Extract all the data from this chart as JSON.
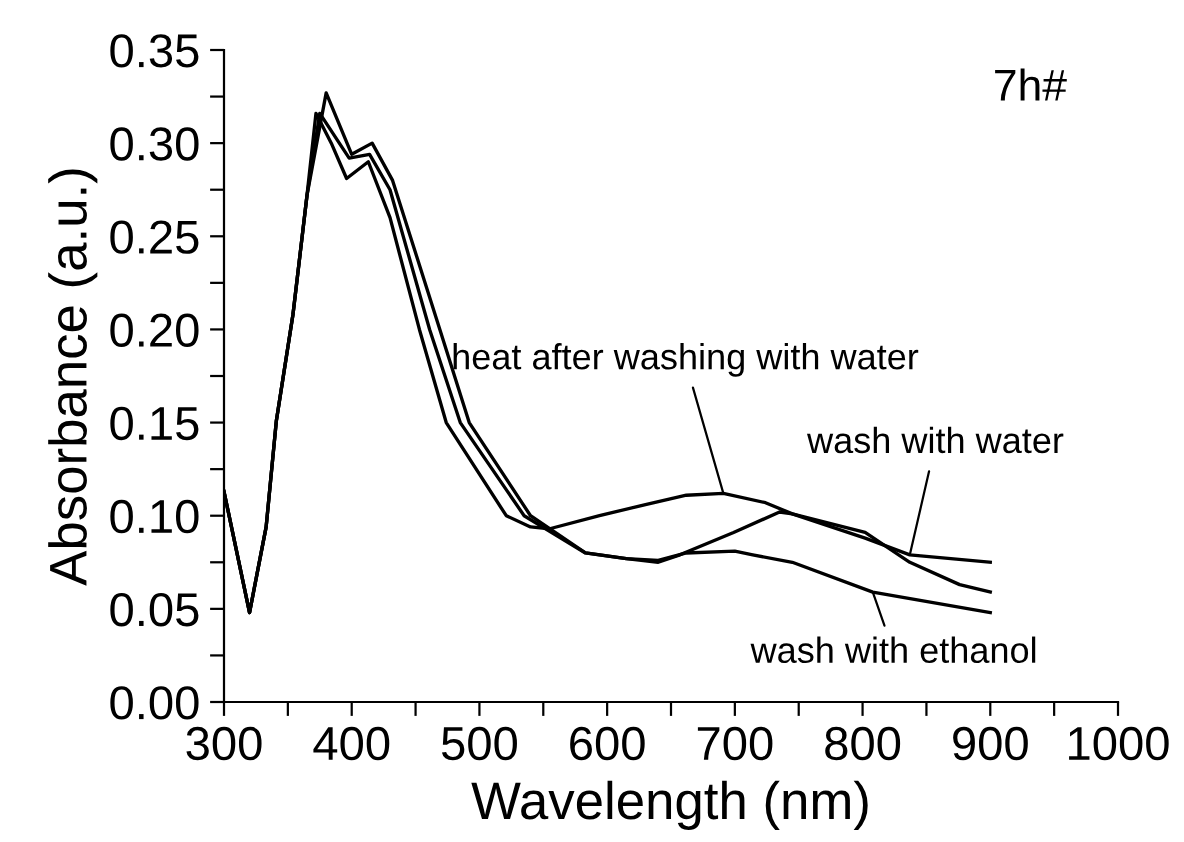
{
  "chart_data": {
    "type": "line",
    "xlabel": "Wavelength (nm)",
    "ylabel": "Absorbance (a.u.)",
    "xlim": [
      300,
      1000
    ],
    "ylim": [
      0,
      0.35
    ],
    "xticks": [
      300,
      {
        "value": 350,
        "label": null
      },
      400,
      {
        "value": 450,
        "label": null
      },
      500,
      {
        "value": 550,
        "label": null
      },
      600,
      {
        "value": 650,
        "label": null
      },
      700,
      {
        "value": 750,
        "label": null
      },
      800,
      {
        "value": 850,
        "label": null
      },
      900,
      {
        "value": 950,
        "label": null
      },
      1000
    ],
    "yticks": [
      {
        "value": 0,
        "label": "0.00"
      },
      {
        "value": 0.025,
        "label": null
      },
      {
        "value": 0.05,
        "label": "0.05"
      },
      {
        "value": 0.075,
        "label": null
      },
      {
        "value": 0.1,
        "label": "0.10"
      },
      {
        "value": 0.125,
        "label": null
      },
      {
        "value": 0.15,
        "label": "0.15"
      },
      {
        "value": 0.175,
        "label": null
      },
      {
        "value": 0.2,
        "label": "0.20"
      },
      {
        "value": 0.225,
        "label": null
      },
      {
        "value": 0.25,
        "label": "0.25"
      },
      {
        "value": 0.275,
        "label": null
      },
      {
        "value": 0.3,
        "label": "0.30"
      },
      {
        "value": 0.325,
        "label": null
      },
      {
        "value": 0.35,
        "label": "0.35"
      }
    ],
    "grid": false,
    "legend": false,
    "marker": "none",
    "line_style": "solid",
    "series": [
      {
        "color": "#000000",
        "x": [
          300,
          320,
          333,
          341,
          354,
          365,
          372,
          384,
          396,
          413,
          430,
          453,
          474,
          521,
          540,
          555,
          594,
          630,
          662,
          691,
          724,
          745,
          802,
          837,
          876,
          900
        ],
        "values": [
          0.113,
          0.048,
          0.094,
          0.151,
          0.208,
          0.272,
          0.316,
          0.3,
          0.281,
          0.29,
          0.26,
          0.2,
          0.15,
          0.1,
          0.094,
          0.093,
          0.1,
          0.106,
          0.111,
          0.112,
          0.107,
          0.101,
          0.091,
          0.075,
          0.063,
          0.059
        ]
      },
      {
        "color": "#000000",
        "x": [
          300,
          320,
          333,
          341,
          354,
          365,
          380,
          400,
          416,
          432,
          469,
          492,
          540,
          583,
          615,
          640,
          657,
          699,
          735,
          745,
          802,
          837,
          900
        ],
        "values": [
          0.113,
          0.048,
          0.094,
          0.151,
          0.208,
          0.272,
          0.327,
          0.294,
          0.3,
          0.28,
          0.2,
          0.15,
          0.1,
          0.08,
          0.077,
          0.075,
          0.079,
          0.091,
          0.102,
          0.101,
          0.088,
          0.079,
          0.075
        ]
      },
      {
        "color": "#000000",
        "x": [
          300,
          320,
          333,
          341,
          354,
          365,
          375,
          398,
          414,
          430,
          461,
          485,
          535,
          583,
          615,
          640,
          662,
          700,
          714,
          745,
          808,
          900
        ],
        "values": [
          0.113,
          0.048,
          0.094,
          0.151,
          0.208,
          0.272,
          0.316,
          0.292,
          0.294,
          0.275,
          0.2,
          0.15,
          0.1,
          0.08,
          0.077,
          0.076,
          0.08,
          0.081,
          0.079,
          0.075,
          0.059,
          0.048
        ]
      }
    ],
    "annotations": [
      {
        "text": "heat after washing with water",
        "x": 691,
        "y": 0.112
      },
      {
        "text": "wash with water",
        "x": 837,
        "y": 0.079
      },
      {
        "text": "wash with ethanol",
        "x": 808,
        "y": 0.059
      },
      "7h#"
    ]
  }
}
